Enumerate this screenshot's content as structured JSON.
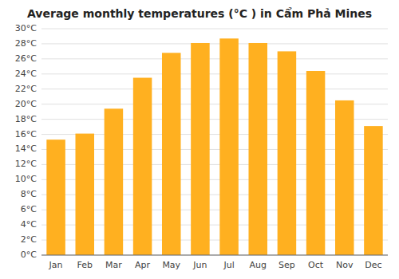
{
  "chart_data": {
    "type": "bar",
    "title": "Average monthly temperatures (°C ) in Cẩm Phả Mines",
    "categories": [
      "Jan",
      "Feb",
      "Mar",
      "Apr",
      "May",
      "Jun",
      "Jul",
      "Aug",
      "Sep",
      "Oct",
      "Nov",
      "Dec"
    ],
    "values": [
      15.3,
      16.1,
      19.4,
      23.5,
      26.8,
      28.1,
      28.7,
      28.1,
      27.0,
      24.4,
      20.5,
      17.1
    ],
    "color": "#FFB020",
    "ylim": [
      0,
      30
    ],
    "yticks": [
      {
        "value": 0,
        "label": "0°C"
      },
      {
        "value": 2,
        "label": "2°C"
      },
      {
        "value": 4,
        "label": "4°C"
      },
      {
        "value": 6,
        "label": "6°C"
      },
      {
        "value": 8,
        "label": "8°C"
      },
      {
        "value": 10,
        "label": "10°C"
      },
      {
        "value": 12,
        "label": "12°C"
      },
      {
        "value": 14,
        "label": "14°C"
      },
      {
        "value": 16,
        "label": "16°C"
      },
      {
        "value": 18,
        "label": "18°C"
      },
      {
        "value": 20,
        "label": "20°C"
      },
      {
        "value": 22,
        "label": "22°C"
      },
      {
        "value": 24,
        "label": "24°C"
      },
      {
        "value": 26,
        "label": "26°C"
      },
      {
        "value": 28,
        "label": "28°C"
      },
      {
        "value": 30,
        "label": "30°C"
      }
    ],
    "grid": true
  }
}
